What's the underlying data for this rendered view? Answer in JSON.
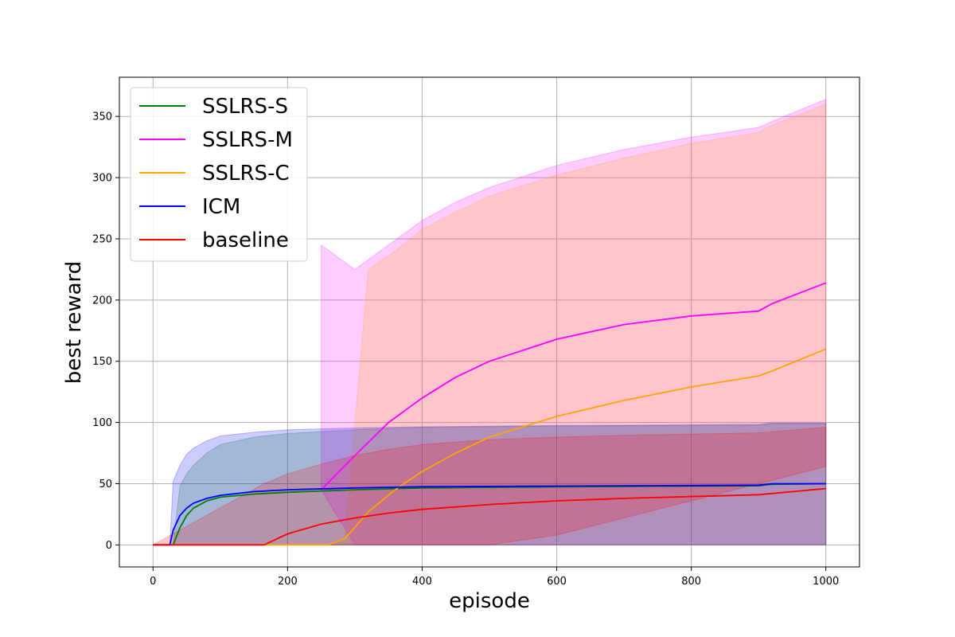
{
  "chart_data": {
    "type": "line",
    "xlabel": "episode",
    "ylabel": "best reward",
    "xlim": [
      -50,
      1050
    ],
    "ylim": [
      -18,
      382
    ],
    "xticks": [
      0,
      200,
      400,
      600,
      800,
      1000
    ],
    "yticks": [
      0,
      50,
      100,
      150,
      200,
      250,
      300,
      350
    ],
    "grid": true,
    "legend_position": "top-left",
    "series": [
      {
        "name": "SSLRS-S",
        "color": "#008000",
        "x": [
          0,
          20,
          30,
          40,
          50,
          60,
          80,
          100,
          150,
          200,
          300,
          400,
          600,
          800,
          900,
          920,
          1000
        ],
        "y": [
          0,
          0,
          0,
          14,
          24,
          30,
          36,
          39,
          41.5,
          43,
          45,
          46.5,
          47.5,
          48,
          48.3,
          49.5,
          50
        ],
        "band_low": [
          0,
          0,
          0,
          0,
          0,
          0,
          0,
          0,
          0,
          0,
          0,
          0,
          0,
          0,
          0,
          0,
          0
        ],
        "band_high": [
          0,
          0,
          0,
          48,
          58,
          65,
          75,
          82,
          88,
          91,
          94,
          96,
          97,
          97.5,
          97.8,
          99,
          99
        ]
      },
      {
        "name": "SSLRS-M",
        "color": "#ff00ff",
        "x": [
          250,
          300,
          350,
          400,
          450,
          500,
          600,
          700,
          800,
          900,
          920,
          1000
        ],
        "y": [
          45,
          73,
          100,
          120,
          137,
          150,
          168,
          180,
          187,
          191,
          197,
          214
        ],
        "band_low": [
          45,
          0,
          0,
          0,
          0,
          0,
          0,
          0,
          0,
          0,
          0,
          0
        ],
        "band_high": [
          245,
          225,
          245,
          265,
          280,
          292,
          310,
          323,
          333,
          341,
          346,
          364
        ]
      },
      {
        "name": "SSLRS-C",
        "color": "#ffa500",
        "x": [
          0,
          260,
          285,
          320,
          360,
          400,
          450,
          500,
          600,
          700,
          800,
          900,
          920,
          1000
        ],
        "y": [
          0,
          0,
          5,
          27,
          45,
          60,
          75,
          88,
          105,
          118,
          129,
          138,
          142,
          160
        ],
        "band_low": [
          0,
          0,
          0,
          0,
          0,
          0,
          0,
          0,
          0,
          0,
          0,
          0,
          0,
          0
        ],
        "band_high": [
          0,
          0,
          5,
          225,
          240,
          258,
          272,
          285,
          302,
          316,
          328,
          337,
          343,
          360
        ]
      },
      {
        "name": "ICM",
        "color": "#0000ff",
        "x": [
          0,
          20,
          25,
          30,
          40,
          50,
          60,
          80,
          100,
          150,
          200,
          300,
          400,
          600,
          800,
          900,
          920,
          1000
        ],
        "y": [
          0,
          0,
          0,
          12,
          24,
          30,
          34,
          38,
          40.5,
          43.5,
          45,
          46.5,
          47.5,
          48,
          48.5,
          48.8,
          50,
          50
        ],
        "band_low": [
          0,
          0,
          0,
          0,
          0,
          0,
          0,
          0,
          0,
          0,
          0,
          0,
          0,
          0,
          0,
          0,
          0,
          0
        ],
        "band_high": [
          0,
          0,
          0,
          52,
          65,
          74,
          79,
          85,
          89,
          92,
          94,
          95.5,
          96.5,
          97.5,
          98,
          98.5,
          99.5,
          99.5
        ]
      },
      {
        "name": "baseline",
        "color": "#ff0000",
        "x": [
          0,
          165,
          200,
          250,
          300,
          350,
          400,
          500,
          600,
          700,
          800,
          900,
          1000
        ],
        "y": [
          0,
          0,
          9,
          17,
          22,
          26,
          29,
          33,
          36,
          38,
          39.5,
          41,
          46
        ],
        "band_low": [
          0,
          0,
          0,
          0,
          0,
          0,
          0,
          0,
          8,
          22,
          36,
          50,
          64
        ],
        "band_high": [
          0,
          50,
          58,
          66,
          73,
          78,
          82,
          86,
          88,
          89.5,
          90.5,
          91.5,
          96
        ]
      }
    ]
  }
}
